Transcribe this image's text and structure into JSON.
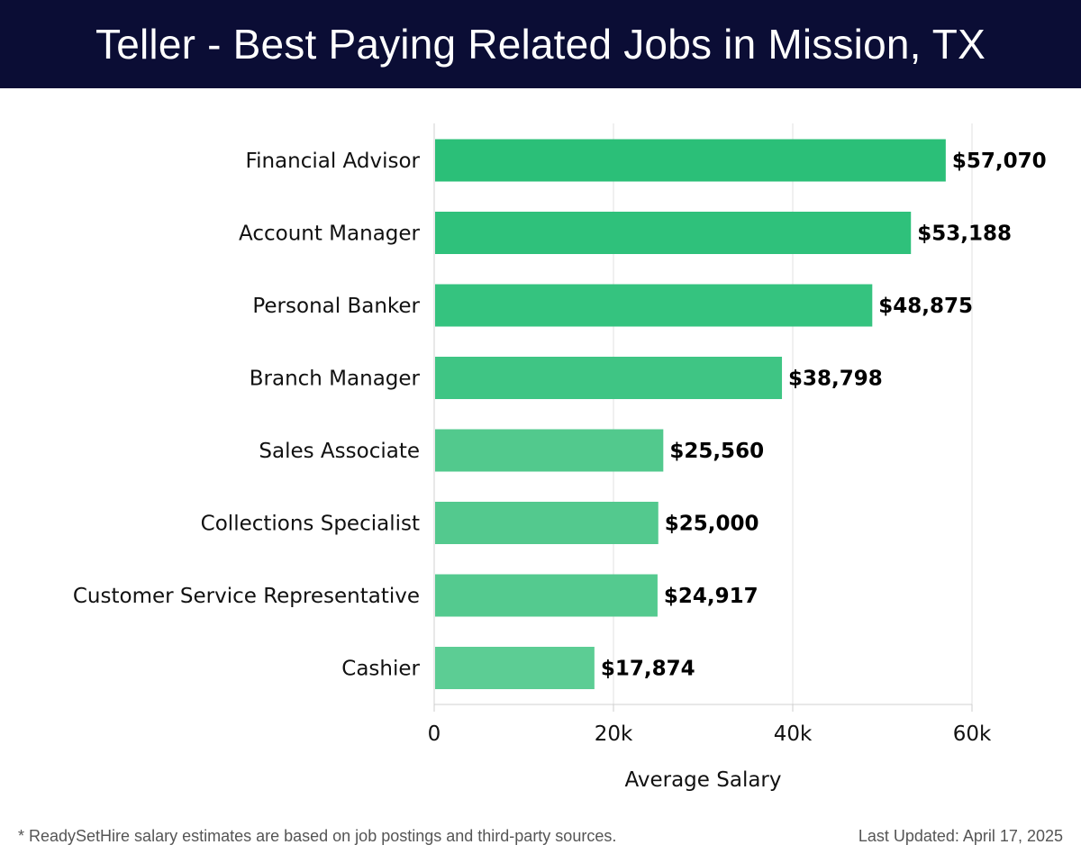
{
  "header": {
    "title": "Teller - Best Paying Related Jobs in Mission, TX"
  },
  "chart_data": {
    "type": "bar",
    "orientation": "horizontal",
    "title": "Teller - Best Paying Related Jobs in Mission, TX",
    "xlabel": "Average Salary",
    "ylabel": "",
    "xlim": [
      0,
      60000
    ],
    "x_ticks": [
      0,
      20000,
      40000,
      60000
    ],
    "x_tick_labels": [
      "0",
      "20k",
      "40k",
      "60k"
    ],
    "grid": true,
    "categories": [
      "Financial Advisor",
      "Account Manager",
      "Personal Banker",
      "Branch Manager",
      "Sales Associate",
      "Collections Specialist",
      "Customer Service Representative",
      "Cashier"
    ],
    "values": [
      57070,
      53188,
      48875,
      38798,
      25560,
      25000,
      24917,
      17874
    ],
    "value_labels": [
      "$57,070",
      "$53,188",
      "$48,875",
      "$38,798",
      "$25,560",
      "$25,000",
      "$24,917",
      "$17,874"
    ],
    "colors": [
      "#2bbf78",
      "#2fc17b",
      "#35c37f",
      "#3fc584",
      "#52c98d",
      "#53c98e",
      "#54ca8f",
      "#5ccd94"
    ]
  },
  "footer": {
    "note": "* ReadySetHire salary estimates are based on job postings and third-party sources.",
    "updated": "Last Updated: April 17, 2025"
  }
}
